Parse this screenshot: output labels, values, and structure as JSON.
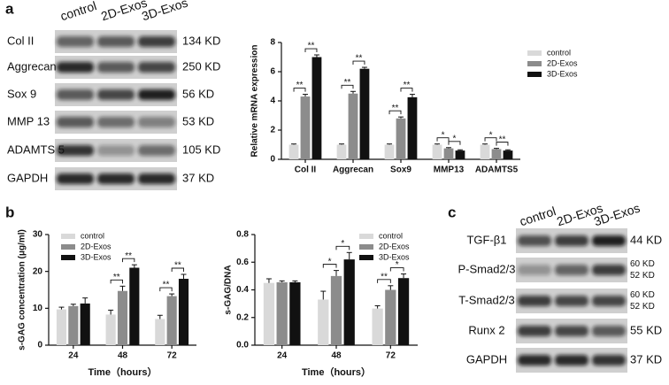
{
  "panel_labels": [
    "a",
    "b",
    "c"
  ],
  "blot_a": {
    "columns": [
      "control",
      "2D-Exos",
      "3D-Exos"
    ],
    "rows": [
      {
        "protein": "Col II",
        "size": [
          "134 KD"
        ]
      },
      {
        "protein": "Aggrecan",
        "size": [
          "250 KD"
        ]
      },
      {
        "protein": "Sox 9",
        "size": [
          "56 KD"
        ]
      },
      {
        "protein": "MMP 13",
        "size": [
          "53 KD"
        ]
      },
      {
        "protein": "ADAMTS 5",
        "size": [
          "105 KD"
        ]
      },
      {
        "protein": "GAPDH",
        "size": [
          "37 KD"
        ]
      }
    ]
  },
  "blot_c": {
    "columns": [
      "control",
      "2D-Exos",
      "3D-Exos"
    ],
    "rows": [
      {
        "protein": "TGF-β1",
        "size": [
          "44 KD"
        ]
      },
      {
        "protein": "P-Smad2/3",
        "size": [
          "60 KD",
          "52 KD"
        ]
      },
      {
        "protein": "T-Smad2/3",
        "size": [
          "60 KD",
          "52 KD"
        ]
      },
      {
        "protein": "Runx 2",
        "size": [
          "55 KD"
        ]
      },
      {
        "protein": "GAPDH",
        "size": [
          "37 KD"
        ]
      }
    ]
  },
  "chart_data": [
    {
      "type": "bar",
      "ylabel": "Relative mRNA expression",
      "categories": [
        "Col II",
        "Aggrecan",
        "Sox9",
        "MMP13",
        "ADAMTS5"
      ],
      "series": [
        {
          "name": "control",
          "color": "#d9d9d9",
          "values": [
            1,
            1,
            1,
            1,
            1
          ],
          "errors": [
            0.05,
            0.05,
            0.05,
            0.05,
            0.05
          ]
        },
        {
          "name": "2D-Exos",
          "color": "#8c8c8c",
          "values": [
            4.3,
            4.5,
            2.8,
            0.75,
            0.7
          ],
          "errors": [
            0.15,
            0.15,
            0.1,
            0.05,
            0.05
          ]
        },
        {
          "name": "3D-Exos",
          "color": "#111111",
          "values": [
            7.0,
            6.2,
            4.25,
            0.6,
            0.6
          ],
          "errors": [
            0.15,
            0.1,
            0.2,
            0.05,
            0.05
          ]
        }
      ],
      "ylim": [
        0,
        8
      ],
      "yticks": [
        0,
        2,
        4,
        6,
        8
      ],
      "legend": "right",
      "significance": [
        {
          "category": "Col II",
          "pair": [
            "control",
            "2D-Exos"
          ],
          "label": "**"
        },
        {
          "category": "Col II",
          "pair": [
            "2D-Exos",
            "3D-Exos"
          ],
          "label": "**"
        },
        {
          "category": "Aggrecan",
          "pair": [
            "control",
            "2D-Exos"
          ],
          "label": "**"
        },
        {
          "category": "Aggrecan",
          "pair": [
            "2D-Exos",
            "3D-Exos"
          ],
          "label": "**"
        },
        {
          "category": "Sox9",
          "pair": [
            "control",
            "2D-Exos"
          ],
          "label": "**"
        },
        {
          "category": "Sox9",
          "pair": [
            "2D-Exos",
            "3D-Exos"
          ],
          "label": "**"
        },
        {
          "category": "MMP13",
          "pair": [
            "control",
            "2D-Exos"
          ],
          "label": "*"
        },
        {
          "category": "MMP13",
          "pair": [
            "2D-Exos",
            "3D-Exos"
          ],
          "label": "*"
        },
        {
          "category": "ADAMTS5",
          "pair": [
            "control",
            "2D-Exos"
          ],
          "label": "*"
        },
        {
          "category": "ADAMTS5",
          "pair": [
            "2D-Exos",
            "3D-Exos"
          ],
          "label": "**"
        }
      ]
    },
    {
      "type": "bar",
      "ylabel": "s-GAG concentration (μg/ml)",
      "xlabel": "Time（hours）",
      "categories": [
        "24",
        "48",
        "72"
      ],
      "series": [
        {
          "name": "control",
          "color": "#d9d9d9",
          "values": [
            9.7,
            8.3,
            7.1
          ],
          "errors": [
            0.6,
            1.2,
            1.0
          ]
        },
        {
          "name": "2D-Exos",
          "color": "#8c8c8c",
          "values": [
            10.6,
            14.7,
            13.3
          ],
          "errors": [
            0.5,
            1.3,
            0.6
          ]
        },
        {
          "name": "3D-Exos",
          "color": "#111111",
          "values": [
            11.3,
            21.0,
            18.0
          ],
          "errors": [
            1.5,
            0.8,
            1.2
          ]
        }
      ],
      "ylim": [
        0,
        30
      ],
      "yticks": [
        0,
        10,
        20,
        30
      ],
      "legend": "upper left",
      "significance": [
        {
          "category": "48",
          "pair": [
            "control",
            "2D-Exos"
          ],
          "label": "**"
        },
        {
          "category": "48",
          "pair": [
            "2D-Exos",
            "3D-Exos"
          ],
          "label": "**"
        },
        {
          "category": "72",
          "pair": [
            "control",
            "2D-Exos"
          ],
          "label": "**"
        },
        {
          "category": "72",
          "pair": [
            "2D-Exos",
            "3D-Exos"
          ],
          "label": "**"
        }
      ]
    },
    {
      "type": "bar",
      "ylabel": "s-GAG/DNA",
      "xlabel": "Time（hours）",
      "categories": [
        "24",
        "48",
        "72"
      ],
      "series": [
        {
          "name": "control",
          "color": "#d9d9d9",
          "values": [
            0.45,
            0.33,
            0.265
          ],
          "errors": [
            0.03,
            0.06,
            0.02
          ]
        },
        {
          "name": "2D-Exos",
          "color": "#8c8c8c",
          "values": [
            0.455,
            0.5,
            0.4
          ],
          "errors": [
            0.01,
            0.04,
            0.03
          ]
        },
        {
          "name": "3D-Exos",
          "color": "#111111",
          "values": [
            0.455,
            0.62,
            0.485
          ],
          "errors": [
            0.01,
            0.05,
            0.03
          ]
        }
      ],
      "ylim": [
        0,
        0.8
      ],
      "yticks": [
        {
          "value": 0,
          "label": "0.0"
        },
        0.2,
        0.4,
        0.6,
        0.8
      ],
      "legend": "upper right",
      "significance": [
        {
          "category": "48",
          "pair": [
            "control",
            "2D-Exos"
          ],
          "label": "*"
        },
        {
          "category": "48",
          "pair": [
            "2D-Exos",
            "3D-Exos"
          ],
          "label": "*"
        },
        {
          "category": "72",
          "pair": [
            "control",
            "2D-Exos"
          ],
          "label": "**"
        },
        {
          "category": "72",
          "pair": [
            "2D-Exos",
            "3D-Exos"
          ],
          "label": "*"
        }
      ]
    }
  ]
}
